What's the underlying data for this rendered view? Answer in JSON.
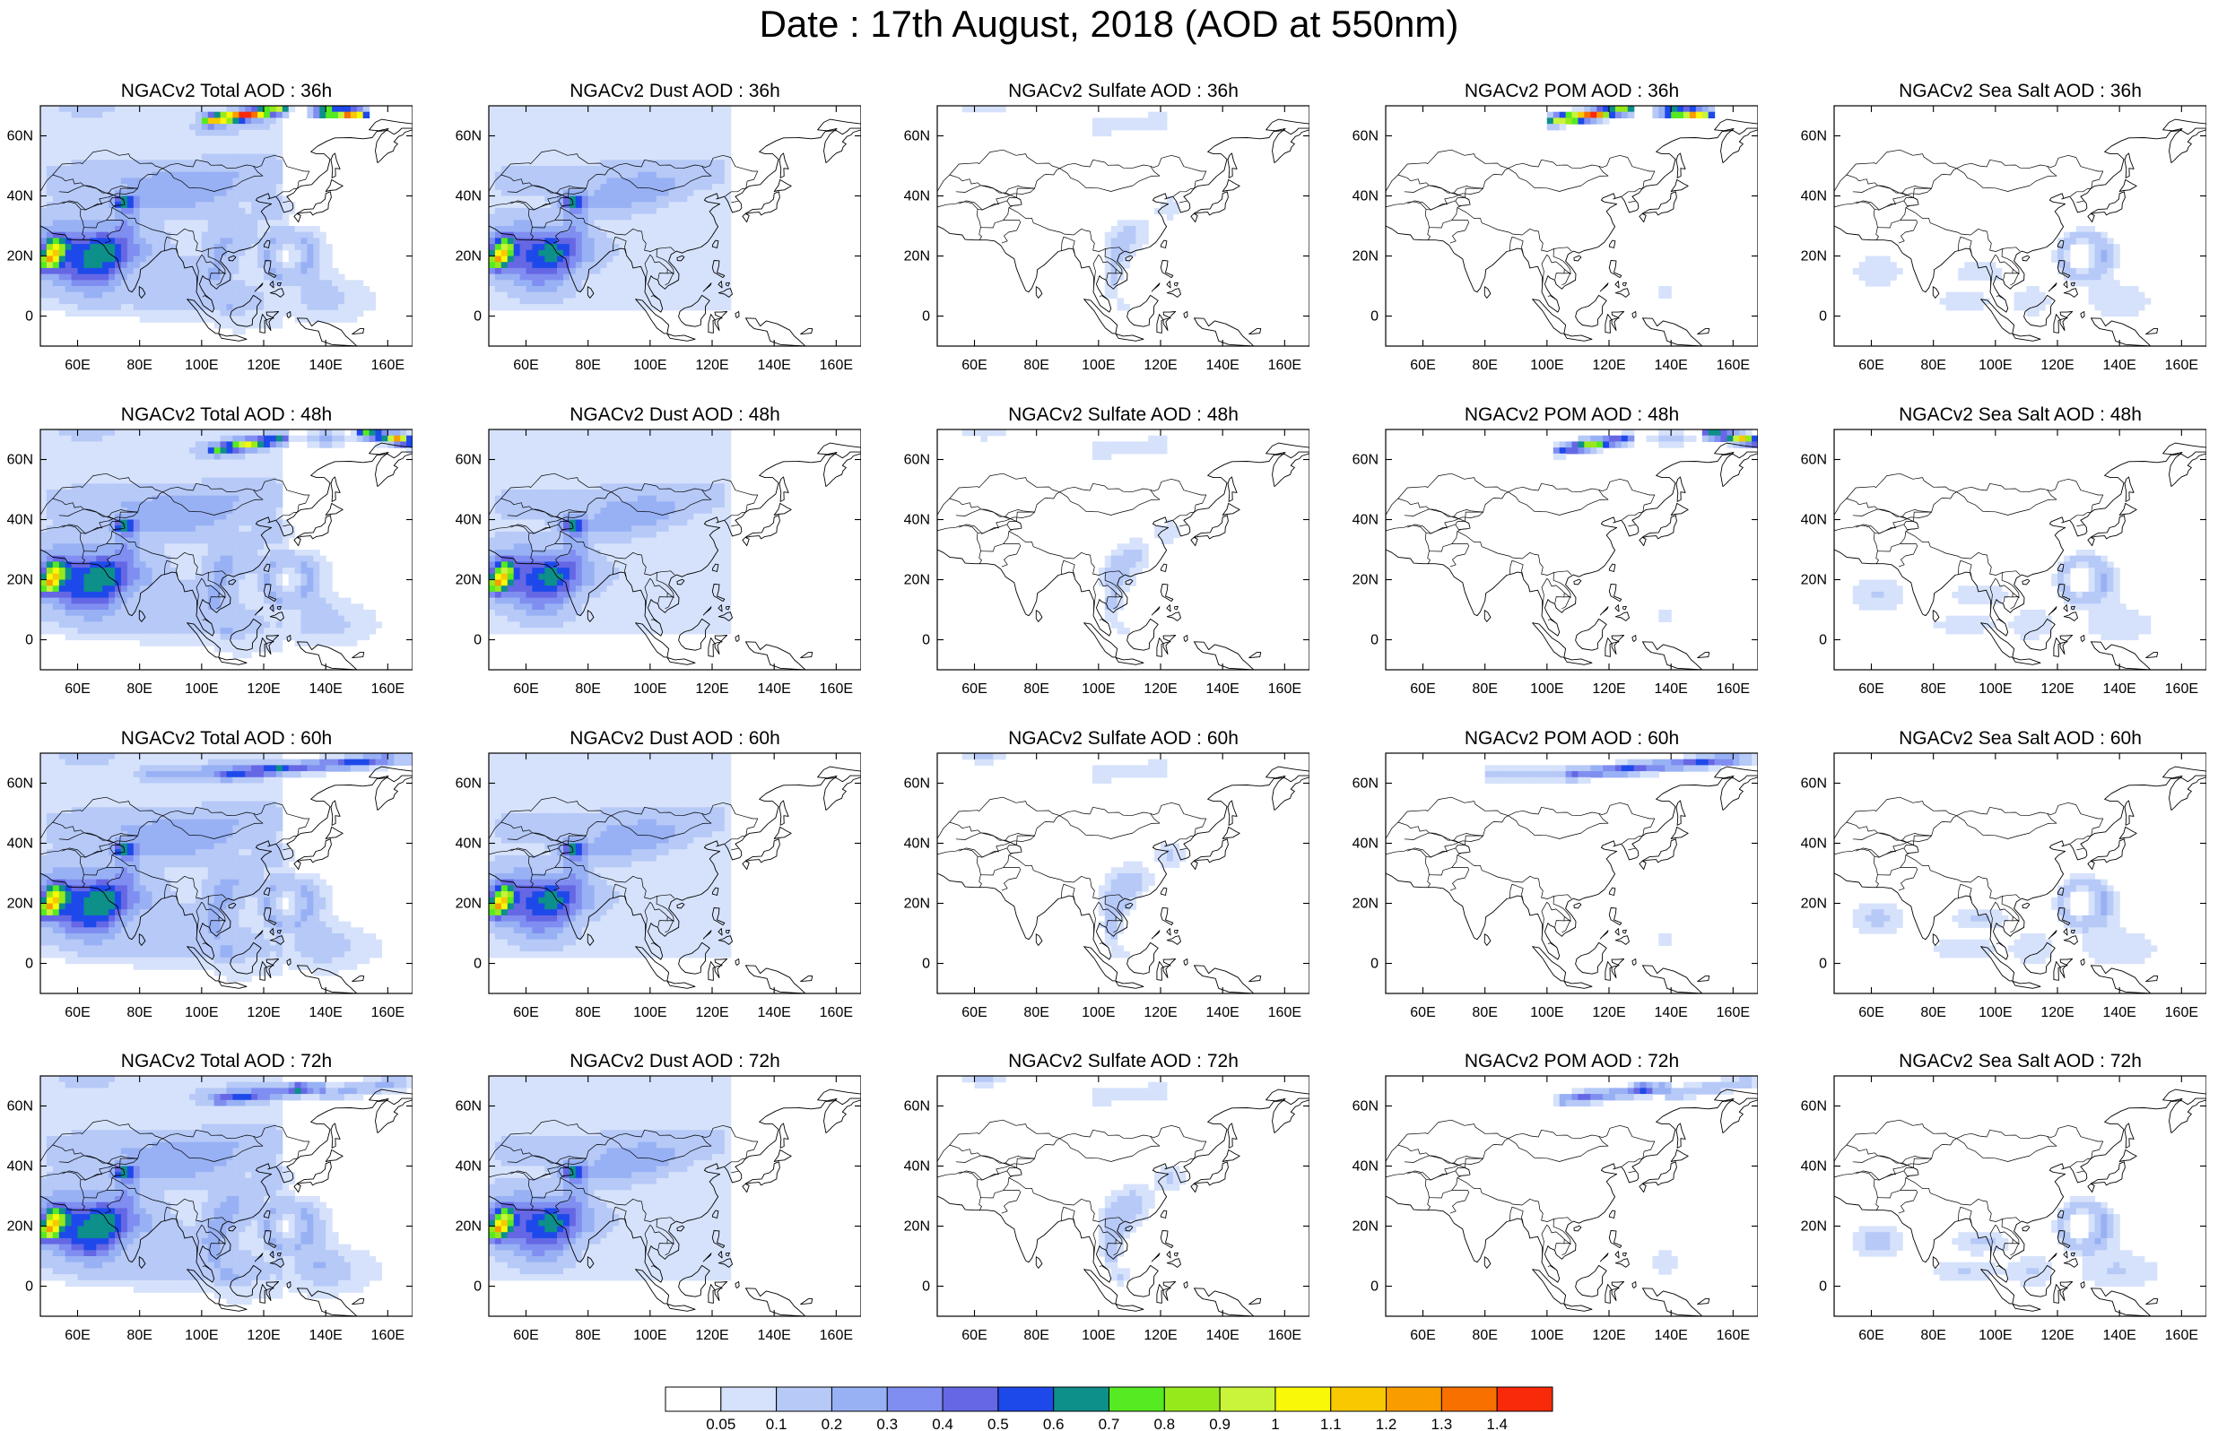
{
  "page": {
    "title": "Date : 17th August, 2018 (AOD at 550nm)"
  },
  "map": {
    "lon_range": [
      48,
      168
    ],
    "lat_range": [
      -10,
      70
    ],
    "lon_ticks": [
      60,
      80,
      100,
      120,
      140,
      160
    ],
    "lon_tick_labels": [
      "60E",
      "80E",
      "100E",
      "120E",
      "140E",
      "160E"
    ],
    "lat_ticks": [
      0,
      20,
      40,
      60
    ],
    "lat_tick_labels": [
      "0",
      "20N",
      "40N",
      "60N"
    ]
  },
  "panels": [
    {
      "title": "NGACv2 Total AOD : 36h",
      "field": "total",
      "hour": 36
    },
    {
      "title": "NGACv2 Dust AOD : 36h",
      "field": "dust",
      "hour": 36
    },
    {
      "title": "NGACv2 Sulfate AOD : 36h",
      "field": "sulfate",
      "hour": 36
    },
    {
      "title": "NGACv2 POM AOD : 36h",
      "field": "pom",
      "hour": 36
    },
    {
      "title": "NGACv2 Sea Salt AOD : 36h",
      "field": "seasalt",
      "hour": 36
    },
    {
      "title": "NGACv2 Total AOD : 48h",
      "field": "total",
      "hour": 48
    },
    {
      "title": "NGACv2 Dust AOD : 48h",
      "field": "dust",
      "hour": 48
    },
    {
      "title": "NGACv2 Sulfate AOD : 48h",
      "field": "sulfate",
      "hour": 48
    },
    {
      "title": "NGACv2 POM AOD : 48h",
      "field": "pom",
      "hour": 48
    },
    {
      "title": "NGACv2 Sea Salt AOD : 48h",
      "field": "seasalt",
      "hour": 48
    },
    {
      "title": "NGACv2 Total AOD : 60h",
      "field": "total",
      "hour": 60
    },
    {
      "title": "NGACv2 Dust AOD : 60h",
      "field": "dust",
      "hour": 60
    },
    {
      "title": "NGACv2 Sulfate AOD : 60h",
      "field": "sulfate",
      "hour": 60
    },
    {
      "title": "NGACv2 POM AOD : 60h",
      "field": "pom",
      "hour": 60
    },
    {
      "title": "NGACv2 Sea Salt AOD : 60h",
      "field": "seasalt",
      "hour": 60
    },
    {
      "title": "NGACv2 Total AOD : 72h",
      "field": "total",
      "hour": 72
    },
    {
      "title": "NGACv2 Dust AOD : 72h",
      "field": "dust",
      "hour": 72
    },
    {
      "title": "NGACv2 Sulfate AOD : 72h",
      "field": "sulfate",
      "hour": 72
    },
    {
      "title": "NGACv2 POM AOD : 72h",
      "field": "pom",
      "hour": 72
    },
    {
      "title": "NGACv2 Sea Salt  AOD : 72h",
      "field": "seasalt",
      "hour": 72
    }
  ],
  "colorbar": {
    "labels": [
      "0.05",
      "0.1",
      "0.2",
      "0.3",
      "0.4",
      "0.5",
      "0.6",
      "0.7",
      "0.8",
      "0.9",
      "1",
      "1.1",
      "1.2",
      "1.3",
      "1.4"
    ],
    "colors": [
      "#ffffff",
      "#d6e2fb",
      "#b6c9f7",
      "#98b1f4",
      "#7f8ef0",
      "#6567e4",
      "#1e49ea",
      "#0d8f8a",
      "#55ea22",
      "#96ea1c",
      "#c9f43a",
      "#f8f808",
      "#f8c800",
      "#f89c00",
      "#f87000",
      "#f82a0a"
    ]
  }
}
